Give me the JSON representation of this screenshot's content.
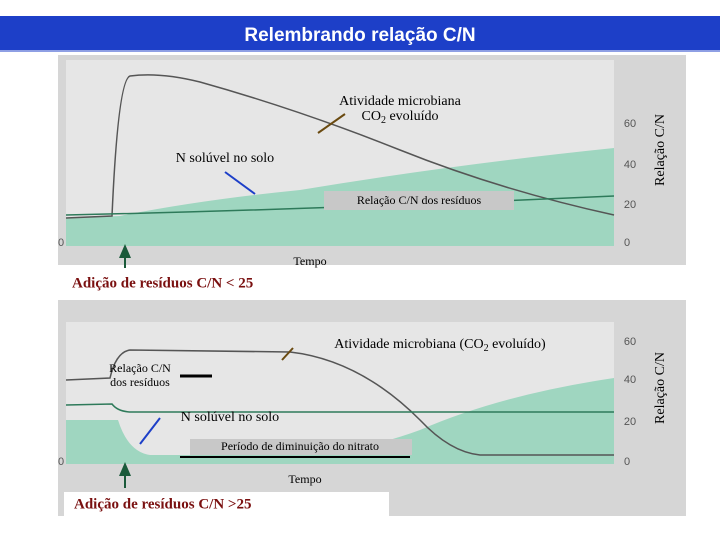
{
  "header": {
    "title": "Relembrando relação C/N"
  },
  "panels": [
    {
      "right_axis_label": "Relação C/N",
      "right_ticks": [
        "60",
        "40",
        "20",
        "0"
      ],
      "left_tick": "0",
      "activity": {
        "line1": "Atividade microbiana",
        "before": "CO",
        "sub": "2",
        "after": " evoluído"
      },
      "nitrogen": "N solúvel no solo",
      "residue": "Relação C/N  dos resíduos",
      "time": "Tempo",
      "caption": "Adição de resíduos C/N < 25"
    },
    {
      "right_axis_label": "Relação C/N",
      "right_ticks": [
        "60",
        "40",
        "20",
        "0"
      ],
      "left_tick": "0",
      "activity": {
        "line1": "Atividade microbiana (CO",
        "sub": "2",
        "after": " evoluído)"
      },
      "residue_lines": [
        "Relação C/N",
        "dos resíduos"
      ],
      "nitrogen": "N solúvel no solo",
      "period": "Período de diminuição do nitrato",
      "time": "Tempo",
      "caption": "Adição de resíduos C/N >25"
    }
  ]
}
